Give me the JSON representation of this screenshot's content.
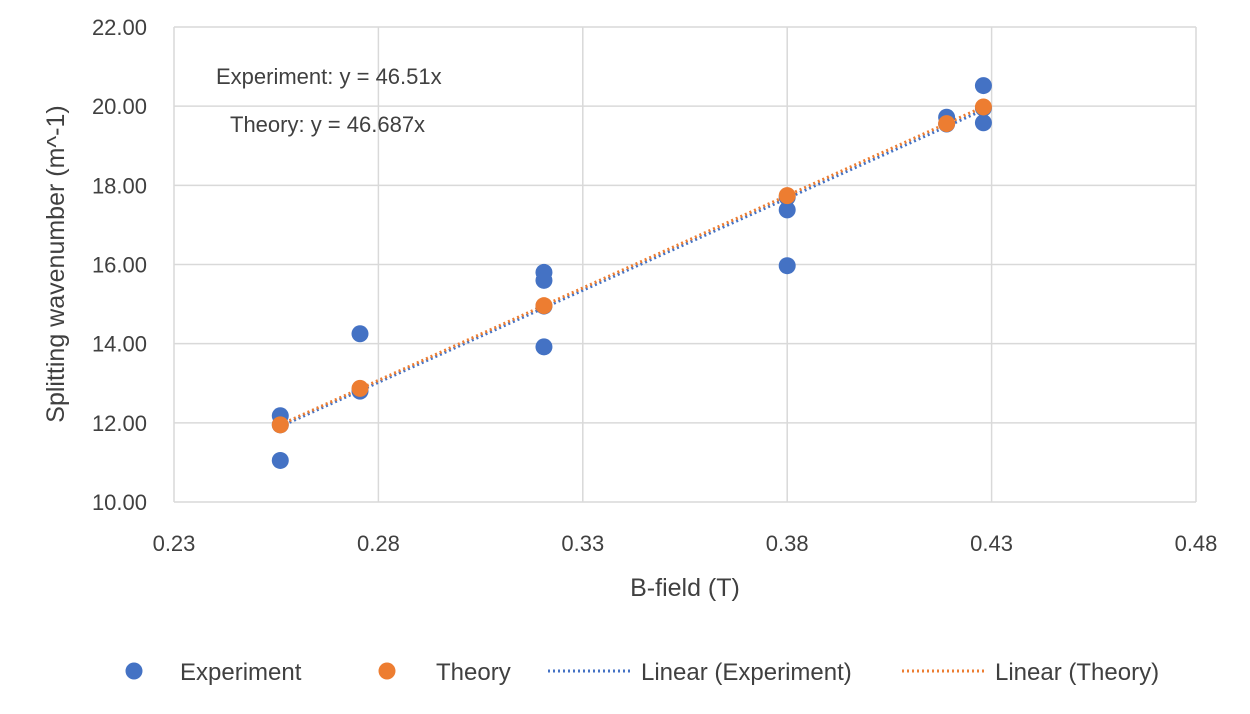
{
  "chart_data": {
    "type": "scatter",
    "xlabel": "B-field (T)",
    "ylabel": "Splitting wavenumber (m^-1)",
    "xlim": [
      0.23,
      0.48
    ],
    "ylim": [
      10.0,
      22.0
    ],
    "x_ticks": [
      "0.23",
      "0.28",
      "0.33",
      "0.38",
      "0.43",
      "0.48"
    ],
    "y_ticks": [
      "10.00",
      "12.00",
      "14.00",
      "16.00",
      "18.00",
      "20.00",
      "22.00"
    ],
    "grid": true,
    "legend_position": "bottom",
    "annotations": [
      "Experiment:  y = 46.51x",
      "Theory: y = 46.687x"
    ],
    "series": [
      {
        "name": "Experiment",
        "marker": "circle",
        "color": "#4472C4",
        "points": [
          {
            "x": 0.256,
            "y": 12.18
          },
          {
            "x": 0.256,
            "y": 11.05
          },
          {
            "x": 0.256,
            "y": 11.95
          },
          {
            "x": 0.2755,
            "y": 14.25
          },
          {
            "x": 0.2755,
            "y": 12.8
          },
          {
            "x": 0.3205,
            "y": 15.8
          },
          {
            "x": 0.3205,
            "y": 15.6
          },
          {
            "x": 0.3205,
            "y": 13.92
          },
          {
            "x": 0.3205,
            "y": 14.95
          },
          {
            "x": 0.38,
            "y": 17.38
          },
          {
            "x": 0.38,
            "y": 15.97
          },
          {
            "x": 0.38,
            "y": 17.7
          },
          {
            "x": 0.419,
            "y": 19.72
          },
          {
            "x": 0.419,
            "y": 19.55
          },
          {
            "x": 0.428,
            "y": 20.52
          },
          {
            "x": 0.428,
            "y": 19.58
          },
          {
            "x": 0.428,
            "y": 19.95
          }
        ]
      },
      {
        "name": "Theory",
        "marker": "circle",
        "color": "#ED7D31",
        "points": [
          {
            "x": 0.256,
            "y": 11.95
          },
          {
            "x": 0.2755,
            "y": 12.87
          },
          {
            "x": 0.3205,
            "y": 14.96
          },
          {
            "x": 0.38,
            "y": 17.74
          },
          {
            "x": 0.419,
            "y": 19.56
          },
          {
            "x": 0.428,
            "y": 19.98
          }
        ]
      }
    ],
    "trendlines": [
      {
        "name": "Linear (Experiment)",
        "slope": 46.51,
        "intercept": 0,
        "style": "dotted",
        "color": "#4472C4",
        "x_range": [
          0.256,
          0.428
        ]
      },
      {
        "name": "Linear (Theory)",
        "slope": 46.687,
        "intercept": 0,
        "style": "dotted",
        "color": "#ED7D31",
        "x_range": [
          0.256,
          0.428
        ]
      }
    ],
    "legend": [
      {
        "label": "Experiment",
        "kind": "marker",
        "color": "#4472C4"
      },
      {
        "label": "Theory",
        "kind": "marker",
        "color": "#ED7D31"
      },
      {
        "label": "Linear (Experiment)",
        "kind": "line",
        "color": "#4472C4"
      },
      {
        "label": "Linear (Theory)",
        "kind": "line",
        "color": "#ED7D31"
      }
    ]
  }
}
